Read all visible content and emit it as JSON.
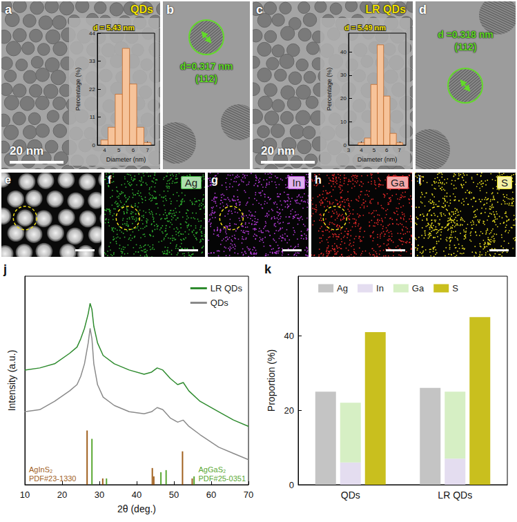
{
  "micrographs": [
    {
      "panel": "a",
      "label": "QDs",
      "scale_bar": "20 nm"
    },
    {
      "panel": "b",
      "annotation": "d=0.317 nm",
      "plane": "(112)"
    },
    {
      "panel": "c",
      "label": "LR QDs",
      "scale_bar": "20 nm"
    },
    {
      "panel": "d",
      "annotation": "d =0.318 nm",
      "plane": "(112)"
    },
    {
      "panel": "e"
    }
  ],
  "maps": [
    {
      "panel": "f",
      "element": "Ag",
      "color": "#2fae2f"
    },
    {
      "panel": "g",
      "element": "In",
      "color": "#b23ad6"
    },
    {
      "panel": "h",
      "element": "Ga",
      "color": "#e02828"
    },
    {
      "panel": "i",
      "element": "S",
      "color": "#e6dc1e"
    }
  ],
  "chart_data": [
    {
      "panel": "a",
      "type": "histogram",
      "annotation": "d = 5.43 nm",
      "xlabel": "Diameter (nm)",
      "ylabel": "Percentage (%)",
      "bins": [
        3.75,
        4.25,
        4.75,
        5.25,
        5.75,
        6.25,
        6.75,
        7.25
      ],
      "values": [
        2,
        7,
        20,
        38,
        24,
        7,
        1
      ],
      "color": "#f6c39a",
      "xlim": [
        3.5,
        7.5
      ],
      "xticks": [
        4,
        5,
        6,
        7
      ],
      "ylim": [
        0,
        44
      ],
      "yticks": [
        0,
        11,
        22,
        33,
        44
      ]
    },
    {
      "panel": "c",
      "type": "histogram",
      "annotation": "d = 5.49 nm",
      "xlabel": "Diameter (nm)",
      "ylabel": "Percentage (%)",
      "bins": [
        3.75,
        4.25,
        4.75,
        5.25,
        5.75,
        6.25,
        6.75,
        7.25
      ],
      "values": [
        1,
        3,
        26,
        43,
        21,
        5,
        1
      ],
      "color": "#f6c39a",
      "xlim": [
        3,
        7.5
      ],
      "xticks": [
        3,
        4,
        5,
        6,
        7
      ],
      "ylim": [
        0,
        48
      ],
      "yticks": [
        0,
        10,
        20,
        30,
        40
      ]
    },
    {
      "panel": "j",
      "type": "line",
      "xlabel": "2θ (deg.)",
      "ylabel": "Intensity (a.u.)",
      "x": [
        10,
        14,
        18,
        22,
        24,
        25,
        26,
        27,
        27.5,
        28,
        28.5,
        29.5,
        31,
        34,
        38,
        42,
        44,
        45.5,
        47,
        49,
        51,
        52.5,
        54,
        57,
        62,
        66,
        70
      ],
      "series": [
        {
          "name": "LR QDs",
          "color": "#2e8b2e",
          "values": [
            55,
            56,
            58,
            63,
            66,
            70,
            75,
            82,
            87,
            84,
            76,
            68,
            62,
            58,
            55,
            53,
            54,
            56,
            55,
            51,
            48,
            49,
            45,
            40,
            35,
            31,
            28
          ]
        },
        {
          "name": "QDs",
          "color": "#8a8a8a",
          "values": [
            35,
            36,
            40,
            45,
            48,
            52,
            58,
            68,
            75,
            70,
            58,
            48,
            42,
            38,
            35,
            34,
            35,
            37,
            36,
            32,
            30,
            31,
            28,
            24,
            18,
            15,
            12
          ]
        }
      ],
      "references": [
        {
          "name": "AgInS₂",
          "label": "PDF#23-1330",
          "type": "bar",
          "color": "#a0601e",
          "x": [
            26.7,
            30.9,
            44.2,
            44.6,
            52.3,
            54.9
          ],
          "values": [
            26,
            3,
            8,
            4,
            16,
            3
          ]
        },
        {
          "name": "AgGaS₂",
          "label": "PDF#25-0351",
          "type": "bar",
          "color": "#5aa832",
          "x": [
            28.0,
            31.9,
            46.5,
            47.9,
            55.4
          ],
          "values": [
            22,
            3,
            6,
            7,
            4
          ]
        }
      ],
      "xlim": [
        10,
        70
      ],
      "xticks": [
        10,
        20,
        30,
        40,
        50,
        60,
        70
      ],
      "ylim": [
        0,
        100
      ],
      "tick_labels": "x",
      "legend": "upper right"
    },
    {
      "panel": "k",
      "type": "bar",
      "ylabel": "Proportion (%)",
      "categories": [
        "QDs",
        "LR QDs"
      ],
      "series": [
        {
          "name": "Ag",
          "color": "#c4c4c4",
          "values": [
            25,
            26
          ]
        },
        {
          "name": "In",
          "color": "#e4ddf0",
          "values": [
            6,
            7
          ],
          "stacked": true
        },
        {
          "name": "Ga",
          "color": "#d6efc4",
          "values": [
            16,
            18
          ],
          "stacked": true
        },
        {
          "name": "S",
          "color": "#c9bf1e",
          "values": [
            41,
            45
          ]
        }
      ],
      "ylim": [
        0,
        56
      ],
      "yticks": [
        0,
        20,
        40
      ],
      "legend": "top"
    }
  ]
}
